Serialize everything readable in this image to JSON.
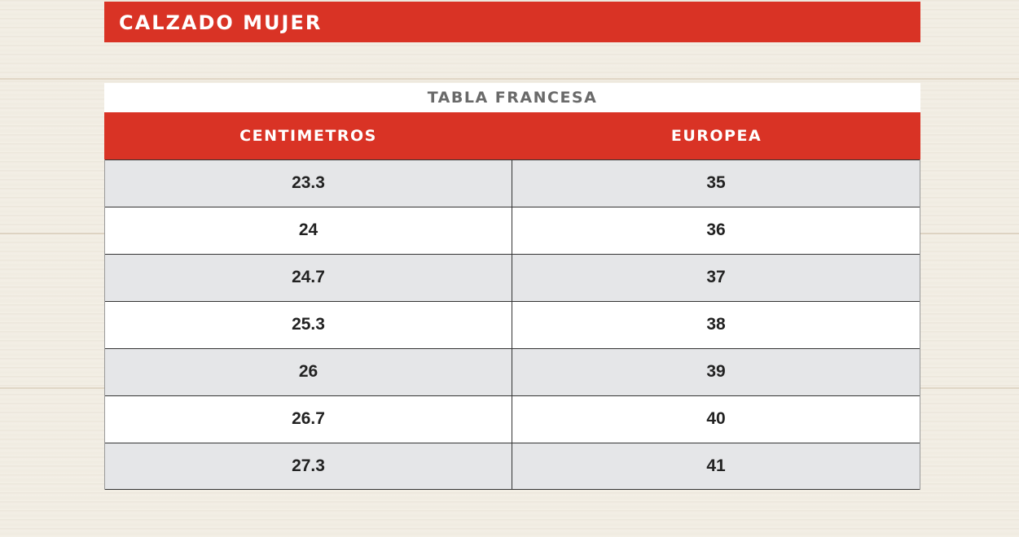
{
  "header": {
    "title": "CALZADO MUJER"
  },
  "table": {
    "caption": "TABLA FRANCESA",
    "columns": [
      "CENTIMETROS",
      "EUROPEA"
    ],
    "rows": [
      [
        "23.3",
        "35"
      ],
      [
        "24",
        "36"
      ],
      [
        "24.7",
        "37"
      ],
      [
        "25.3",
        "38"
      ],
      [
        "26",
        "39"
      ],
      [
        "26.7",
        "40"
      ],
      [
        "27.3",
        "41"
      ]
    ]
  },
  "colors": {
    "accent": "#d93325",
    "row_alt": "#e5e6e8"
  }
}
